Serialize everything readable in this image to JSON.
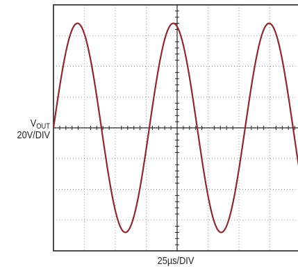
{
  "chart_data": {
    "type": "line",
    "title": "",
    "ylabel_main": "V",
    "ylabel_sub": "OUT",
    "ylabel_scale": "20V/DIV",
    "xlabel": "25µs/DIV",
    "grid": true,
    "x_divisions": 8,
    "y_divisions": 8,
    "xlim_div": [
      0,
      8
    ],
    "ylim_div": [
      -4,
      4
    ],
    "series": [
      {
        "trace_color": "#8b2a2e",
        "waveform": "sine",
        "amplitude_div": 3.4,
        "period_div": 3.1,
        "phase_deg": 0,
        "x_start_div": 0,
        "x_end_div": 8
      }
    ]
  }
}
